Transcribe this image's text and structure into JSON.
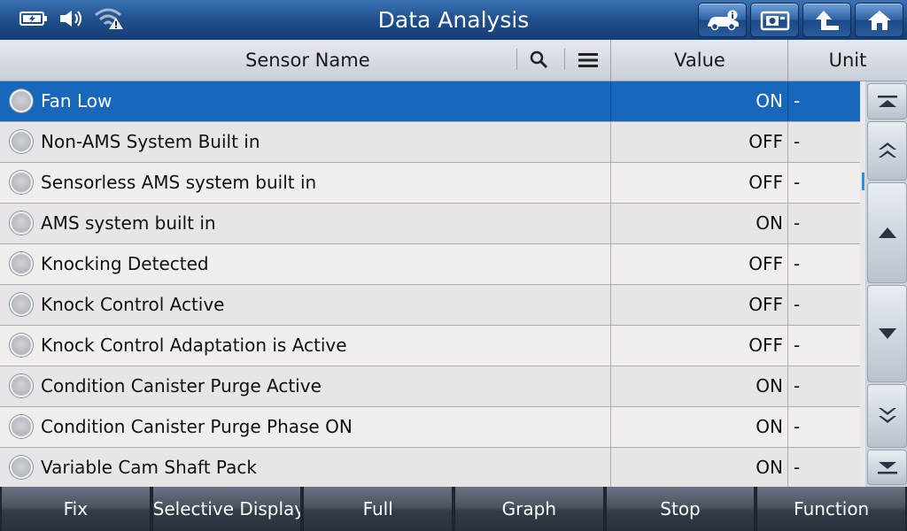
{
  "titlebar": {
    "title": "Data Analysis",
    "status_icons": [
      "battery-charging-icon",
      "speaker-icon",
      "wifi-warning-icon"
    ],
    "buttons": [
      "vehicle-info-icon",
      "screenshot-icon",
      "back-up-icon",
      "home-icon"
    ]
  },
  "header": {
    "sensor_name": "Sensor Name",
    "value": "Value",
    "unit": "Unit"
  },
  "rows": [
    {
      "name": "Fan Low",
      "value": "ON",
      "unit": "-",
      "selected": true
    },
    {
      "name": "Non-AMS System Built in",
      "value": "OFF",
      "unit": "-"
    },
    {
      "name": "Sensorless AMS system built in",
      "value": "OFF",
      "unit": "-"
    },
    {
      "name": "AMS system built in",
      "value": "ON",
      "unit": "-"
    },
    {
      "name": "Knocking Detected",
      "value": "OFF",
      "unit": "-"
    },
    {
      "name": "Knock Control Active",
      "value": "OFF",
      "unit": "-"
    },
    {
      "name": "Knock Control Adaptation is Active",
      "value": "OFF",
      "unit": "-"
    },
    {
      "name": "Condition Canister Purge Active",
      "value": "ON",
      "unit": "-"
    },
    {
      "name": "Condition Canister Purge Phase ON",
      "value": "ON",
      "unit": "-"
    },
    {
      "name": "Variable Cam Shaft Pack",
      "value": "ON",
      "unit": "-"
    }
  ],
  "bottom": {
    "fix": "Fix",
    "selective_display": "Selective Display",
    "full": "Full",
    "graph": "Graph",
    "stop": "Stop",
    "function": "Function"
  },
  "colors": {
    "title_bar": "#1f4f8c",
    "selected_row": "#1767bd",
    "scroll_thumb": "#2b8ee0"
  }
}
